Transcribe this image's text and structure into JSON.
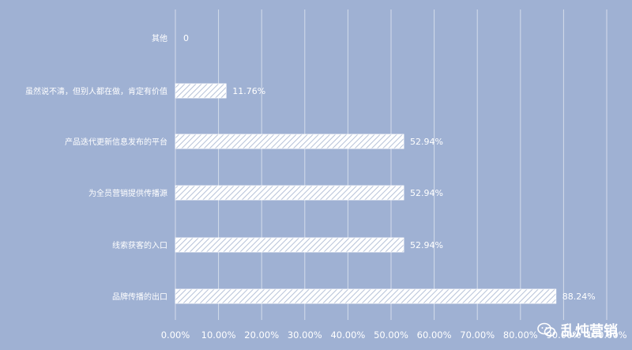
{
  "chart_data": {
    "type": "bar",
    "orientation": "horizontal",
    "categories": [
      "其他",
      "虽然说不清，但别人都在做，肯定有价值",
      "产品迭代更新信息发布的平台",
      "为全员营销提供传播源",
      "线索获客的入口",
      "品牌传播的出口"
    ],
    "values": [
      0,
      11.76,
      52.94,
      52.94,
      52.94,
      88.24
    ],
    "value_labels": [
      "0",
      "11.76%",
      "52.94%",
      "52.94%",
      "52.94%",
      "88.24%"
    ],
    "xlim": [
      0,
      100
    ],
    "xticks": [
      "0.00%",
      "10.00%",
      "20.00%",
      "30.00%",
      "40.00%",
      "50.00%",
      "60.00%",
      "70.00%",
      "80.00%",
      "90.00%",
      "100.00%"
    ],
    "grid": true,
    "bar_style": "diagonal-hatch-white",
    "background": "#9fb1d3",
    "title": "",
    "xlabel": "",
    "ylabel": ""
  },
  "watermark": {
    "icon": "wechat-icon",
    "text": "乱炖营销"
  }
}
